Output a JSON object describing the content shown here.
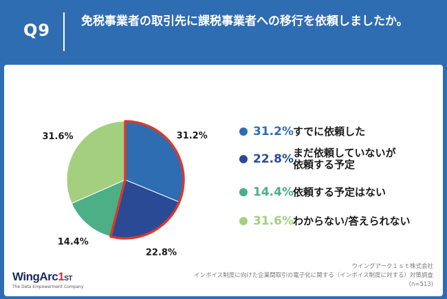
{
  "header": {
    "question_number": "Q9",
    "question_text": "免税事業者の取引先に課税事業者への移行を依頼しましたか。"
  },
  "chart_data": {
    "type": "pie",
    "slices": [
      {
        "label": "すでに依頼した",
        "value": 31.2,
        "value_label": "31.2%",
        "color": "#2f6db3",
        "highlighted": true
      },
      {
        "label": "まだ依頼していないが依頼する予定",
        "value": 22.8,
        "value_label": "22.8%",
        "color": "#2a4a96",
        "highlighted": true
      },
      {
        "label": "依頼する予定はない",
        "value": 14.4,
        "value_label": "14.4%",
        "color": "#4caf86",
        "highlighted": false
      },
      {
        "label": "わからない/答えられない",
        "value": 31.6,
        "value_label": "31.6%",
        "color": "#a3cf7f",
        "highlighted": false
      }
    ],
    "highlight_color": "#d93a2b"
  },
  "legend": {
    "items": [
      {
        "pct": "31.2%",
        "label": "すでに依頼した",
        "color": "#2f6db3"
      },
      {
        "pct": "22.8%",
        "label": "まだ依頼していないが\n依頼する予定",
        "color": "#2a4a96"
      },
      {
        "pct": "14.4%",
        "label": "依頼する予定はない",
        "color": "#4caf86"
      },
      {
        "pct": "31.6%",
        "label": "わからない/答えられない",
        "color": "#a3cf7f"
      }
    ]
  },
  "source": {
    "line1": "ウイングアーク１ｓｔ株式会社",
    "line2": "インボイス制度に向けた企業間取引の電子化に関する（インボイス制度に対する）対策調査",
    "line3": "(n=513)"
  },
  "logo": {
    "main_prefix": "WingArc",
    "main_one": "1",
    "main_suffix": "ST",
    "tagline": "The Data Empowerment Company"
  }
}
